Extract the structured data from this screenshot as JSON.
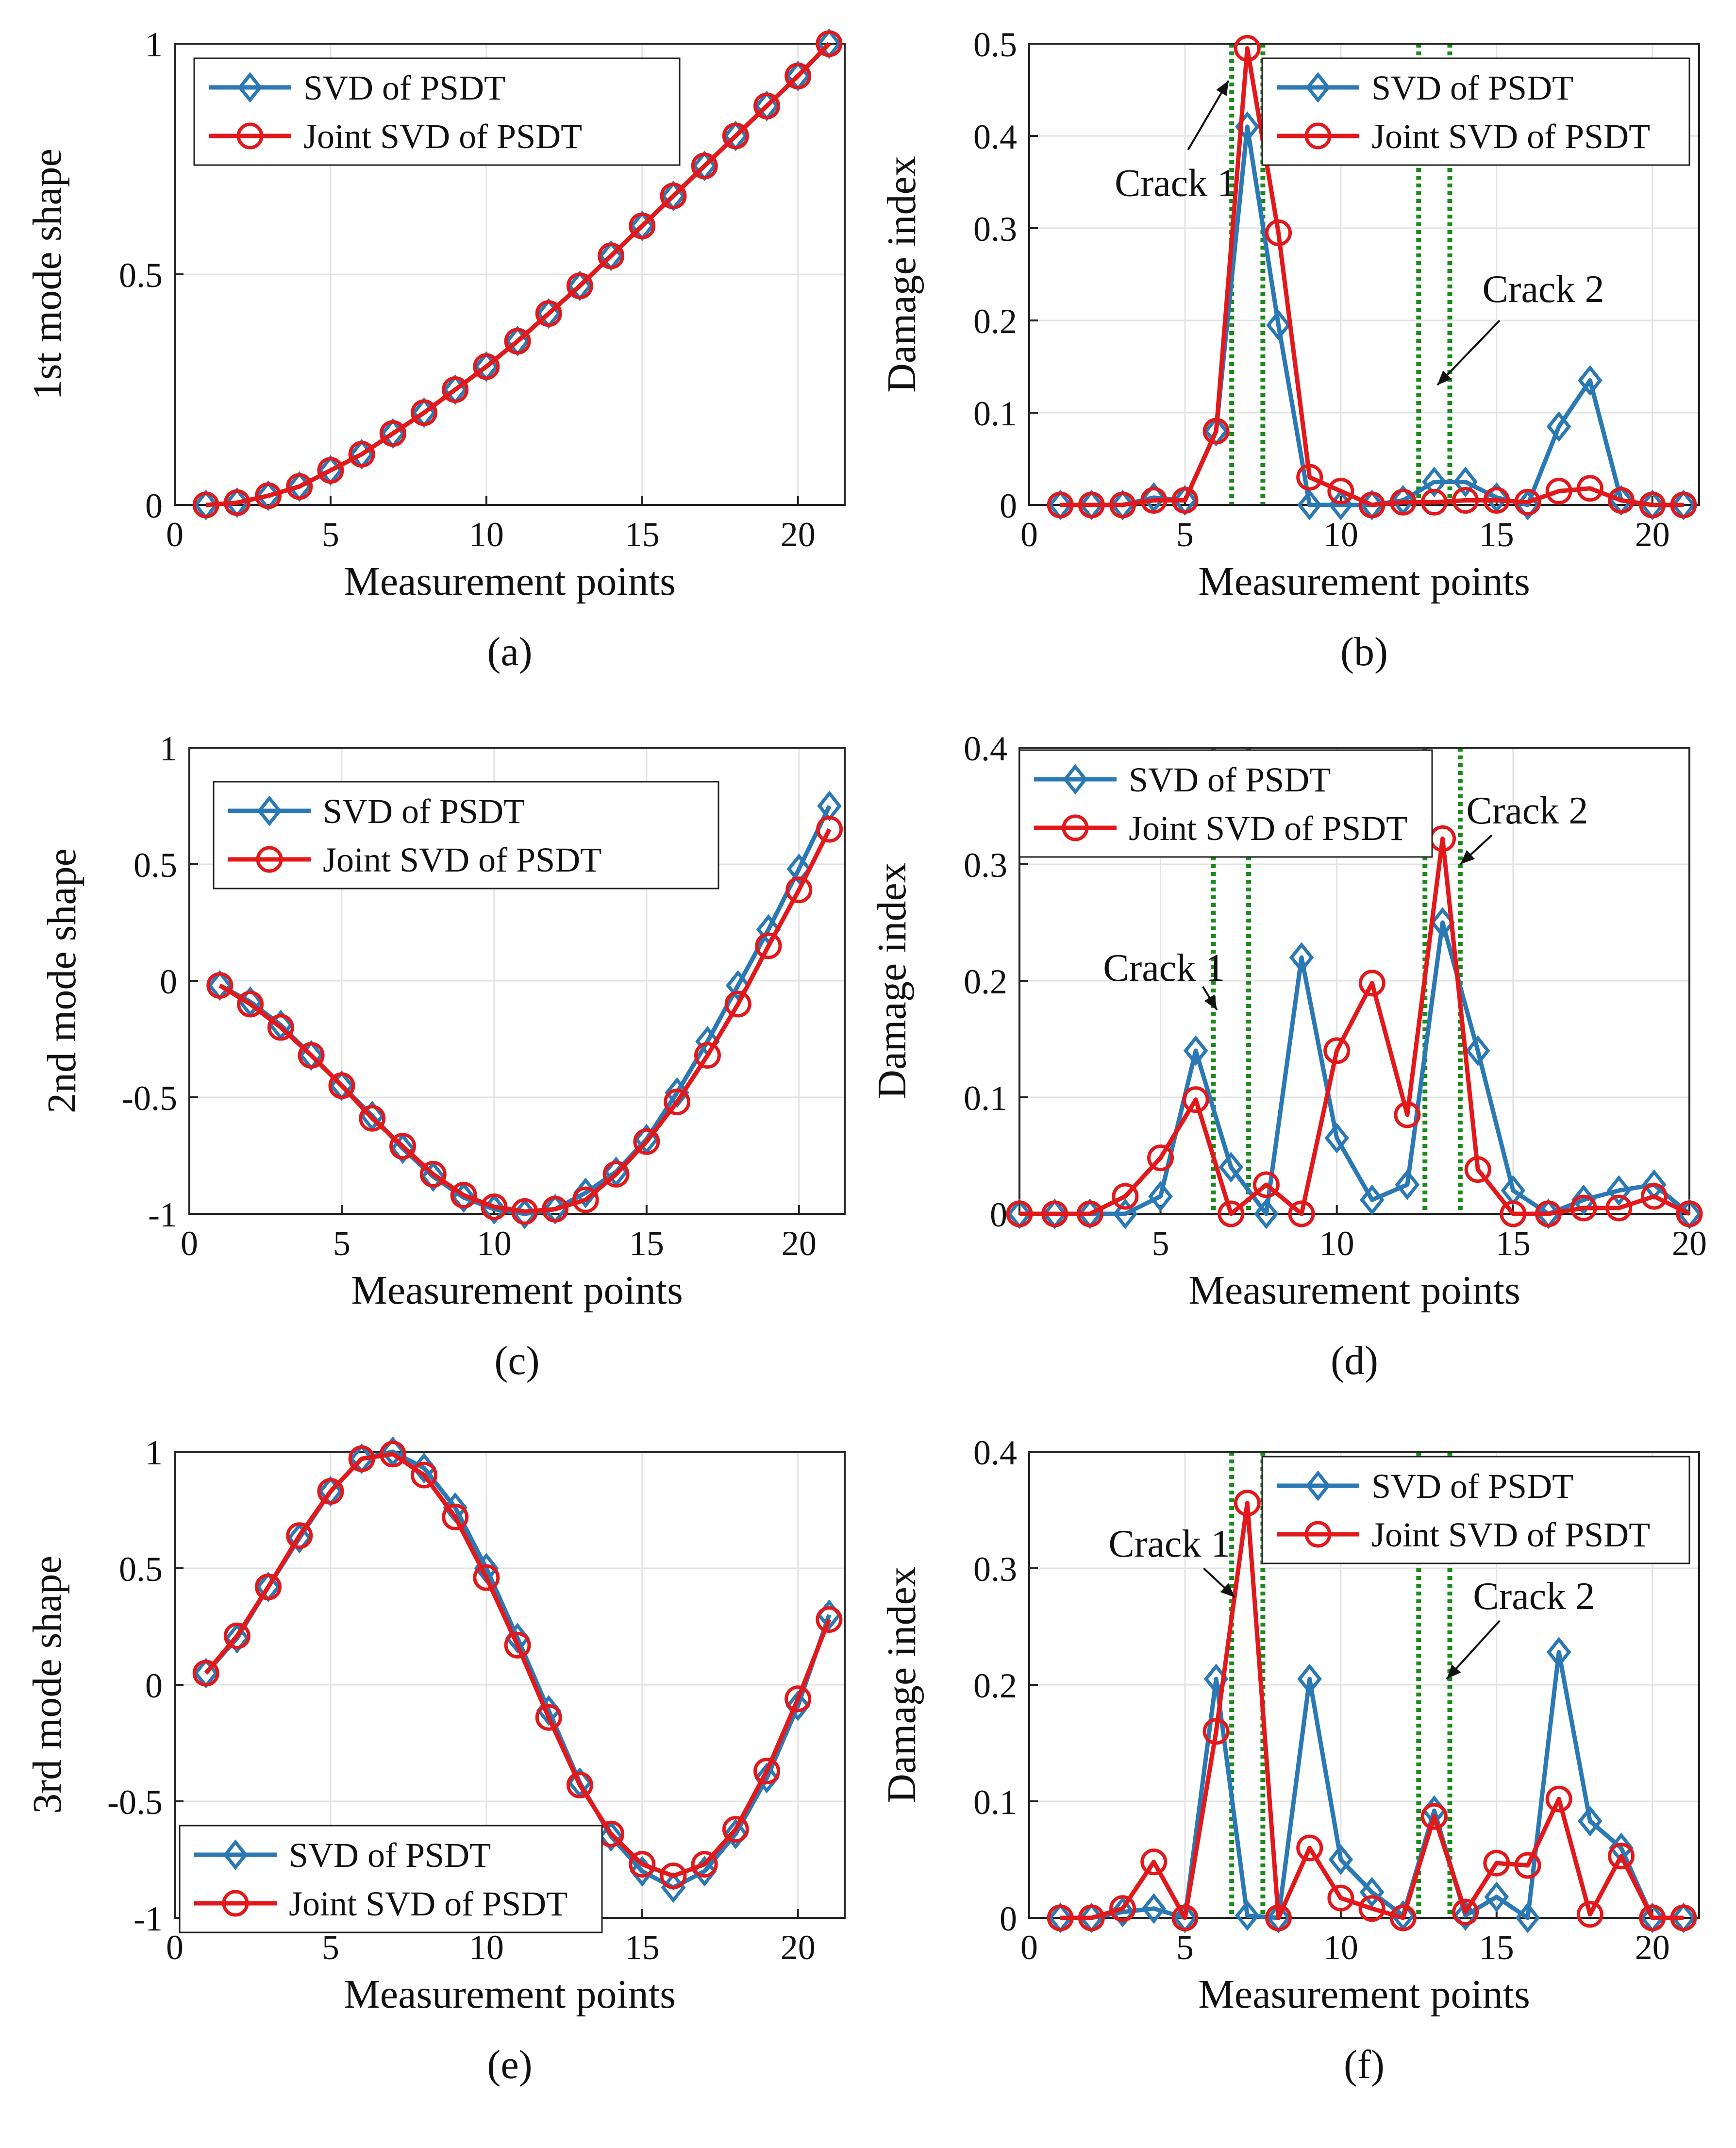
{
  "figure": {
    "panel_count": 6
  },
  "chart_data": [
    {
      "id": "a",
      "type": "line",
      "caption": "(a)",
      "xlabel": "Measurement points",
      "ylabel": "1st mode shape",
      "xlim": [
        0,
        21.5
      ],
      "ylim": [
        0,
        1
      ],
      "xticks": [
        0,
        5,
        10,
        15,
        20
      ],
      "xtick_labels": [
        "0",
        "5",
        "10",
        "15",
        "20"
      ],
      "yticks": [
        0,
        0.5,
        1
      ],
      "ytick_labels": [
        "0",
        "0.5",
        "1"
      ],
      "legend": {
        "position": "top-left",
        "entries": [
          "SVD of PSDT",
          "Joint SVD of PSDT"
        ]
      },
      "x": [
        1,
        2,
        3,
        4,
        5,
        6,
        7,
        8,
        9,
        10,
        11,
        12,
        13,
        14,
        15,
        16,
        17,
        18,
        19,
        20,
        21
      ],
      "series": [
        {
          "name": "SVD of PSDT",
          "color": "#2a79b5",
          "marker": "diamond",
          "values": [
            0.0,
            0.005,
            0.02,
            0.04,
            0.075,
            0.11,
            0.155,
            0.2,
            0.25,
            0.3,
            0.355,
            0.415,
            0.475,
            0.54,
            0.605,
            0.67,
            0.735,
            0.8,
            0.865,
            0.93,
            1.0
          ]
        },
        {
          "name": "Joint SVD of PSDT",
          "color": "#e3181b",
          "marker": "circle",
          "values": [
            0.0,
            0.005,
            0.02,
            0.04,
            0.075,
            0.11,
            0.155,
            0.2,
            0.25,
            0.3,
            0.355,
            0.415,
            0.475,
            0.54,
            0.605,
            0.67,
            0.735,
            0.8,
            0.865,
            0.93,
            1.0
          ]
        }
      ],
      "crack_lines": [],
      "annotations": []
    },
    {
      "id": "b",
      "type": "line",
      "caption": "(b)",
      "xlabel": "Measurement points",
      "ylabel": "Damage index",
      "xlim": [
        0,
        21.5
      ],
      "ylim": [
        0,
        0.5
      ],
      "xticks": [
        0,
        5,
        10,
        15,
        20
      ],
      "xtick_labels": [
        "0",
        "5",
        "10",
        "15",
        "20"
      ],
      "yticks": [
        0,
        0.1,
        0.2,
        0.3,
        0.4,
        0.5
      ],
      "ytick_labels": [
        "0",
        "0.1",
        "0.2",
        "0.3",
        "0.4",
        "0.5"
      ],
      "legend": {
        "position": "top-right",
        "entries": [
          "SVD of PSDT",
          "Joint SVD of PSDT"
        ]
      },
      "x": [
        1,
        2,
        3,
        4,
        5,
        6,
        7,
        8,
        9,
        10,
        11,
        12,
        13,
        14,
        15,
        16,
        17,
        18,
        19,
        20,
        21
      ],
      "series": [
        {
          "name": "SVD of PSDT",
          "color": "#2a79b5",
          "marker": "diamond",
          "values": [
            0.0,
            0.0,
            0.0,
            0.008,
            0.005,
            0.08,
            0.41,
            0.195,
            0.0,
            0.0,
            0.0,
            0.005,
            0.025,
            0.025,
            0.008,
            0.0,
            0.085,
            0.135,
            0.005,
            0.0,
            0.0
          ]
        },
        {
          "name": "Joint SVD of PSDT",
          "color": "#e3181b",
          "marker": "circle",
          "values": [
            0.0,
            0.0,
            0.0,
            0.005,
            0.005,
            0.08,
            0.495,
            0.295,
            0.03,
            0.015,
            0.0,
            0.003,
            0.003,
            0.005,
            0.005,
            0.003,
            0.015,
            0.018,
            0.005,
            0.0,
            0.0
          ]
        }
      ],
      "crack_lines": [
        6.5,
        7.5,
        12.5,
        13.5
      ],
      "annotations": [
        {
          "text": "Crack 1",
          "text_x": 4.7,
          "text_y": 0.335,
          "arrow_from": [
            5.1,
            0.385
          ],
          "arrow_to": [
            6.4,
            0.46
          ]
        },
        {
          "text": "Crack 2",
          "text_x": 16.5,
          "text_y": 0.22,
          "arrow_from": [
            15.1,
            0.2
          ],
          "arrow_to": [
            13.1,
            0.13
          ]
        }
      ]
    },
    {
      "id": "c",
      "type": "line",
      "caption": "(c)",
      "xlabel": "Measurement points",
      "ylabel": "2nd mode shape",
      "xlim": [
        0,
        21.5
      ],
      "ylim": [
        -1,
        1
      ],
      "xticks": [
        0,
        5,
        10,
        15,
        20
      ],
      "xtick_labels": [
        "0",
        "5",
        "10",
        "15",
        "20"
      ],
      "yticks": [
        -1,
        -0.5,
        0,
        0.5,
        1
      ],
      "ytick_labels": [
        "-1",
        "-0.5",
        "0",
        "0.5",
        "1"
      ],
      "legend": {
        "position": "top-center",
        "entries": [
          "SVD of PSDT",
          "Joint SVD of PSDT"
        ]
      },
      "x": [
        1,
        2,
        3,
        4,
        5,
        6,
        7,
        8,
        9,
        10,
        11,
        12,
        13,
        14,
        15,
        16,
        17,
        18,
        19,
        20,
        21
      ],
      "series": [
        {
          "name": "SVD of PSDT",
          "color": "#2a79b5",
          "marker": "diamond",
          "values": [
            -0.02,
            -0.09,
            -0.19,
            -0.32,
            -0.45,
            -0.58,
            -0.72,
            -0.84,
            -0.93,
            -0.98,
            -1.0,
            -0.98,
            -0.91,
            -0.82,
            -0.68,
            -0.48,
            -0.26,
            -0.02,
            0.22,
            0.48,
            0.75
          ]
        },
        {
          "name": "Joint SVD of PSDT",
          "color": "#e3181b",
          "marker": "circle",
          "values": [
            -0.02,
            -0.1,
            -0.2,
            -0.32,
            -0.45,
            -0.59,
            -0.71,
            -0.83,
            -0.92,
            -0.97,
            -0.99,
            -0.98,
            -0.94,
            -0.83,
            -0.69,
            -0.52,
            -0.32,
            -0.1,
            0.15,
            0.39,
            0.65
          ]
        }
      ],
      "crack_lines": [],
      "annotations": []
    },
    {
      "id": "d",
      "type": "line",
      "caption": "(d)",
      "xlabel": "Measurement points",
      "ylabel": "Damage index",
      "xlim": [
        1,
        20
      ],
      "ylim": [
        0,
        0.4
      ],
      "xticks": [
        5,
        10,
        15,
        20
      ],
      "xtick_labels": [
        "5",
        "10",
        "15",
        "20"
      ],
      "yticks": [
        0,
        0.1,
        0.2,
        0.3,
        0.4
      ],
      "ytick_labels": [
        "0",
        "0.1",
        "0.2",
        "0.3",
        "0.4"
      ],
      "legend": {
        "position": "top-left",
        "entries": [
          "SVD of PSDT",
          "Joint SVD of PSDT"
        ]
      },
      "x": [
        1,
        2,
        3,
        4,
        5,
        6,
        7,
        8,
        9,
        10,
        11,
        12,
        13,
        14,
        15,
        16,
        17,
        18,
        19,
        20
      ],
      "series": [
        {
          "name": "SVD of PSDT",
          "color": "#2a79b5",
          "marker": "diamond",
          "values": [
            0.0,
            0.0,
            0.0,
            0.0,
            0.015,
            0.14,
            0.04,
            0.0,
            0.22,
            0.065,
            0.012,
            0.025,
            0.25,
            0.14,
            0.02,
            0.0,
            0.012,
            0.02,
            0.025,
            0.0
          ]
        },
        {
          "name": "Joint SVD of PSDT",
          "color": "#e3181b",
          "marker": "circle",
          "values": [
            0.0,
            0.0,
            0.0,
            0.015,
            0.048,
            0.098,
            0.0,
            0.025,
            0.0,
            0.14,
            0.198,
            0.085,
            0.322,
            0.038,
            0.0,
            0.0,
            0.005,
            0.005,
            0.015,
            0.0
          ]
        }
      ],
      "crack_lines": [
        6.5,
        7.5,
        12.5,
        13.5
      ],
      "annotations": [
        {
          "text": "Crack 1",
          "text_x": 5.1,
          "text_y": 0.2,
          "arrow_from": [
            6.2,
            0.195
          ],
          "arrow_to": [
            6.6,
            0.175
          ]
        },
        {
          "text": "Crack 2",
          "text_x": 15.4,
          "text_y": 0.335,
          "arrow_from": [
            14.4,
            0.325
          ],
          "arrow_to": [
            13.5,
            0.3
          ]
        }
      ]
    },
    {
      "id": "e",
      "type": "line",
      "caption": "(e)",
      "xlabel": "Measurement points",
      "ylabel": "3rd mode shape",
      "xlim": [
        0,
        21.5
      ],
      "ylim": [
        -1,
        1
      ],
      "xticks": [
        0,
        5,
        10,
        15,
        20
      ],
      "xtick_labels": [
        "0",
        "5",
        "10",
        "15",
        "20"
      ],
      "yticks": [
        -1,
        -0.5,
        0,
        0.5,
        1
      ],
      "ytick_labels": [
        "-1",
        "-0.5",
        "0",
        "0.5",
        "1"
      ],
      "legend": {
        "position": "bottom-left",
        "entries": [
          "SVD of PSDT",
          "Joint SVD of PSDT"
        ]
      },
      "x": [
        1,
        2,
        3,
        4,
        5,
        6,
        7,
        8,
        9,
        10,
        11,
        12,
        13,
        14,
        15,
        16,
        17,
        18,
        19,
        20,
        21
      ],
      "series": [
        {
          "name": "SVD of PSDT",
          "color": "#2a79b5",
          "marker": "diamond",
          "values": [
            0.05,
            0.2,
            0.42,
            0.63,
            0.83,
            0.97,
            1.0,
            0.93,
            0.76,
            0.5,
            0.2,
            -0.11,
            -0.42,
            -0.65,
            -0.8,
            -0.87,
            -0.8,
            -0.64,
            -0.4,
            -0.09,
            0.3
          ]
        },
        {
          "name": "Joint SVD of PSDT",
          "color": "#e3181b",
          "marker": "circle",
          "values": [
            0.05,
            0.21,
            0.42,
            0.64,
            0.83,
            0.97,
            0.99,
            0.9,
            0.72,
            0.46,
            0.17,
            -0.14,
            -0.43,
            -0.64,
            -0.77,
            -0.82,
            -0.77,
            -0.62,
            -0.37,
            -0.06,
            0.28
          ]
        }
      ],
      "crack_lines": [],
      "annotations": []
    },
    {
      "id": "f",
      "type": "line",
      "caption": "(f)",
      "xlabel": "Measurement points",
      "ylabel": "Damage index",
      "xlim": [
        0,
        21.5
      ],
      "ylim": [
        0,
        0.4
      ],
      "xticks": [
        0,
        5,
        10,
        15,
        20
      ],
      "xtick_labels": [
        "0",
        "5",
        "10",
        "15",
        "20"
      ],
      "yticks": [
        0,
        0.1,
        0.2,
        0.3,
        0.4
      ],
      "ytick_labels": [
        "0",
        "0.1",
        "0.2",
        "0.3",
        "0.4"
      ],
      "legend": {
        "position": "top-right",
        "entries": [
          "SVD of PSDT",
          "Joint SVD of PSDT"
        ]
      },
      "x": [
        1,
        2,
        3,
        4,
        5,
        6,
        7,
        8,
        9,
        10,
        11,
        12,
        13,
        14,
        15,
        16,
        17,
        18,
        19,
        20,
        21
      ],
      "series": [
        {
          "name": "SVD of PSDT",
          "color": "#2a79b5",
          "marker": "diamond",
          "values": [
            0.0,
            0.0,
            0.005,
            0.008,
            0.0,
            0.205,
            0.002,
            0.0,
            0.205,
            0.05,
            0.022,
            0.002,
            0.092,
            0.002,
            0.018,
            0.0,
            0.228,
            0.083,
            0.06,
            0.0,
            0.0
          ]
        },
        {
          "name": "Joint SVD of PSDT",
          "color": "#e3181b",
          "marker": "circle",
          "values": [
            0.0,
            0.0,
            0.008,
            0.048,
            0.0,
            0.16,
            0.356,
            0.0,
            0.06,
            0.017,
            0.008,
            0.0,
            0.087,
            0.005,
            0.047,
            0.045,
            0.102,
            0.003,
            0.053,
            0.0,
            0.0
          ]
        }
      ],
      "crack_lines": [
        6.5,
        7.5,
        12.5,
        13.5
      ],
      "annotations": [
        {
          "text": "Crack 1",
          "text_x": 4.5,
          "text_y": 0.31,
          "arrow_from": [
            5.6,
            0.3
          ],
          "arrow_to": [
            6.6,
            0.275
          ]
        },
        {
          "text": "Crack 2",
          "text_x": 16.2,
          "text_y": 0.265,
          "arrow_from": [
            15.1,
            0.255
          ],
          "arrow_to": [
            13.4,
            0.205
          ]
        }
      ]
    }
  ]
}
